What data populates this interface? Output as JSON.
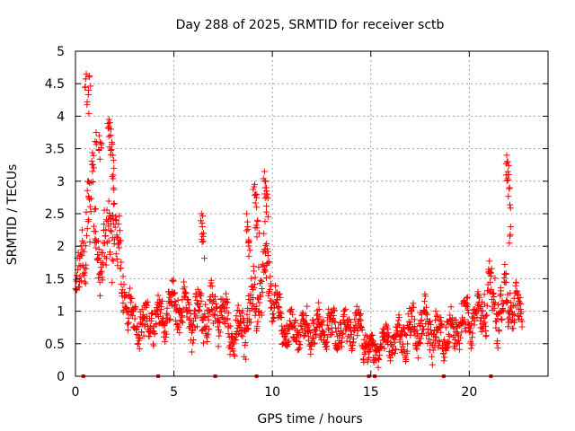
{
  "chart_data": {
    "type": "scatter",
    "title": "Day 288 of 2025, SRMTID for receiver sctb",
    "xlabel": "GPS time / hours",
    "ylabel": "SRMTID / TECUs",
    "xlim": [
      0,
      24
    ],
    "ylim": [
      0,
      5
    ],
    "xticks": [
      0,
      5,
      10,
      15,
      20
    ],
    "xtick_labels": [
      "0",
      "5",
      "10",
      "15",
      "20"
    ],
    "yticks": [
      0,
      0.5,
      1,
      1.5,
      2,
      2.5,
      3,
      3.5,
      4,
      4.5,
      5
    ],
    "ytick_labels": [
      "0",
      "0.5",
      "1",
      "1.5",
      "2",
      "2.5",
      "3",
      "3.5",
      "4",
      "4.5",
      "5"
    ],
    "grid": true,
    "marker": "+",
    "marker_color": "#ff0000",
    "axis_color": "#000000",
    "grid_color": "#a0a0a0",
    "zero_markers_x": [
      0.4,
      4.2,
      7.1,
      9.2,
      14.9,
      15.2,
      18.7,
      21.1
    ],
    "series": [
      {
        "name": "SRMTID",
        "trend_x": [
          0,
          0.3,
          0.6,
          1,
          1.4,
          1.8,
          2.2,
          2.8,
          3.5,
          4.2,
          5,
          5.8,
          6.6,
          7.4,
          8.2,
          8.8,
          9.3,
          9.8,
          10.5,
          11.5,
          12.5,
          13.5,
          14.5,
          15,
          15.5,
          16.5,
          17.5,
          18.5,
          19.5,
          20.5,
          21,
          21.5,
          22,
          22.7
        ],
        "trend_y": [
          1.2,
          1.6,
          2.6,
          2.4,
          1.6,
          2.6,
          1.8,
          0.9,
          0.8,
          0.9,
          1.1,
          0.9,
          1.0,
          0.95,
          0.6,
          0.9,
          1.4,
          1.6,
          0.7,
          0.7,
          0.75,
          0.7,
          0.75,
          0.3,
          0.5,
          0.6,
          0.8,
          0.55,
          0.8,
          0.9,
          1.3,
          1.1,
          1.2,
          0.9
        ],
        "spread": [
          0.5,
          0.8,
          1.0,
          1.0,
          0.7,
          1.0,
          0.6,
          0.4,
          0.4,
          0.4,
          0.4,
          0.5,
          0.5,
          0.4,
          0.4,
          0.6,
          0.8,
          0.7,
          0.3,
          0.35,
          0.35,
          0.35,
          0.4,
          0.3,
          0.3,
          0.35,
          0.5,
          0.4,
          0.45,
          0.45,
          0.6,
          0.6,
          0.5,
          0.3
        ],
        "peaks": [
          {
            "x": [
              0.55,
              0.65,
              0.7,
              1.2,
              1.25,
              1.05
            ],
            "y": [
              4.65,
              4.33,
              4.62,
              3.7,
              3.6,
              3.75
            ]
          },
          {
            "x": [
              1.7,
              1.75,
              1.8,
              1.85,
              1.9,
              1.95
            ],
            "y": [
              3.95,
              3.9,
              3.8,
              3.6,
              3.4,
              3.2
            ]
          },
          {
            "x": [
              9.1,
              9.15,
              9.2,
              9.25
            ],
            "y": [
              2.95,
              2.8,
              2.6,
              2.4
            ]
          },
          {
            "x": [
              9.6,
              9.65,
              9.7,
              9.75
            ],
            "y": [
              3.15,
              3.0,
              2.9,
              2.8
            ]
          },
          {
            "x": [
              21.9,
              21.95,
              22.0,
              22.05,
              22.1
            ],
            "y": [
              3.4,
              3.3,
              3.1,
              2.9,
              2.3
            ]
          },
          {
            "x": [
              6.4,
              6.45,
              6.5
            ],
            "y": [
              2.5,
              2.3,
              2.2
            ]
          },
          {
            "x": [
              8.7,
              8.75,
              8.8
            ],
            "y": [
              2.5,
              2.3,
              2.1
            ]
          }
        ],
        "num_points": 1500,
        "seed": 288
      }
    ]
  }
}
